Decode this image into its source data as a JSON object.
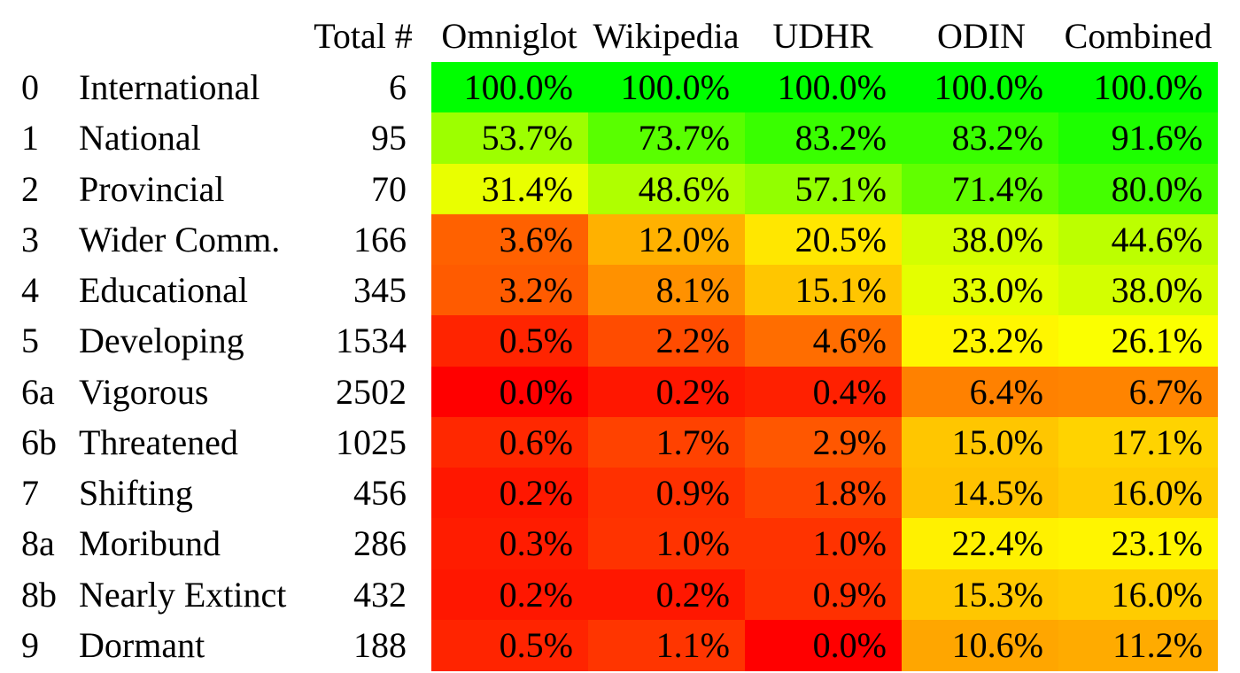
{
  "chart_data": {
    "type": "heatmap",
    "title": "",
    "columns": [
      "Total #",
      "Omniglot",
      "Wikipedia",
      "UDHR",
      "ODIN",
      "Combined"
    ],
    "rows": [
      {
        "level": "0",
        "name": "International",
        "total": "6",
        "values": [
          100.0,
          100.0,
          100.0,
          100.0,
          100.0
        ]
      },
      {
        "level": "1",
        "name": "National",
        "total": "95",
        "values": [
          53.7,
          73.7,
          83.2,
          83.2,
          91.6
        ]
      },
      {
        "level": "2",
        "name": "Provincial",
        "total": "70",
        "values": [
          31.4,
          48.6,
          57.1,
          71.4,
          80.0
        ]
      },
      {
        "level": "3",
        "name": "Wider Comm.",
        "total": "166",
        "values": [
          3.6,
          12.0,
          20.5,
          38.0,
          44.6
        ]
      },
      {
        "level": "4",
        "name": "Educational",
        "total": "345",
        "values": [
          3.2,
          8.1,
          15.1,
          33.0,
          38.0
        ]
      },
      {
        "level": "5",
        "name": "Developing",
        "total": "1534",
        "values": [
          0.5,
          2.2,
          4.6,
          23.2,
          26.1
        ]
      },
      {
        "level": "6a",
        "name": "Vigorous",
        "total": "2502",
        "values": [
          0.0,
          0.2,
          0.4,
          6.4,
          6.7
        ]
      },
      {
        "level": "6b",
        "name": "Threatened",
        "total": "1025",
        "values": [
          0.6,
          1.7,
          2.9,
          15.0,
          17.1
        ]
      },
      {
        "level": "7",
        "name": "Shifting",
        "total": "456",
        "values": [
          0.2,
          0.9,
          1.8,
          14.5,
          16.0
        ]
      },
      {
        "level": "8a",
        "name": "Moribund",
        "total": "286",
        "values": [
          0.3,
          1.0,
          1.0,
          22.4,
          23.1
        ]
      },
      {
        "level": "8b",
        "name": "Nearly Extinct",
        "total": "432",
        "values": [
          0.2,
          0.2,
          0.9,
          15.3,
          16.0
        ]
      },
      {
        "level": "9",
        "name": "Dormant",
        "total": "188",
        "values": [
          0.5,
          1.1,
          0.0,
          10.6,
          11.2
        ]
      }
    ],
    "value_suffix": "%",
    "color_scale": {
      "low": "#ff0000",
      "mid": "#ffff00",
      "high": "#00ff00"
    },
    "grid": false
  }
}
